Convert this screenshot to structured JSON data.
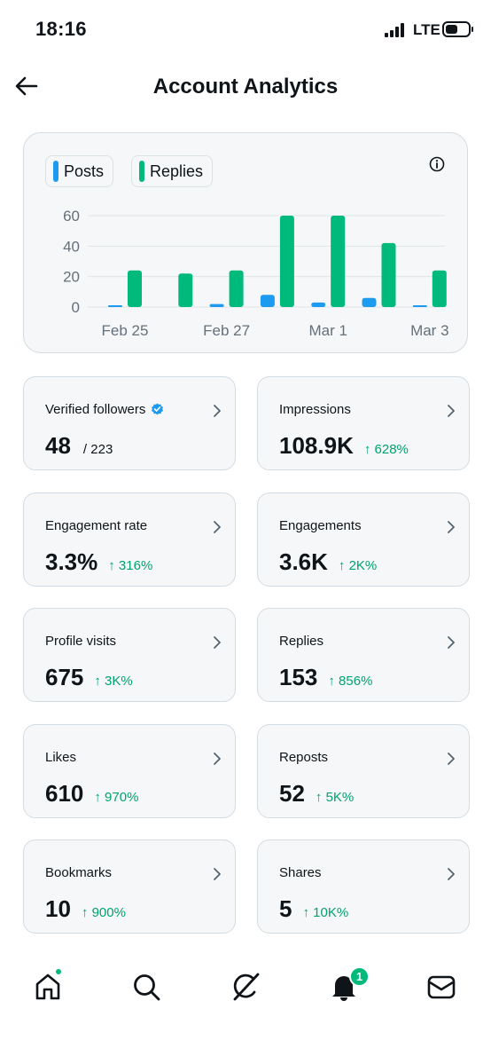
{
  "status_bar": {
    "time": "18:16",
    "network": "LTE",
    "signal_bars": 4,
    "battery_level": 0.55
  },
  "header": {
    "back_icon": "arrow-left-icon",
    "title": "Account Analytics"
  },
  "chart": {
    "legend": [
      {
        "label": "Posts",
        "color": "#1d9bf0"
      },
      {
        "label": "Replies",
        "color": "#00ba7c"
      }
    ],
    "info_icon": "info-icon"
  },
  "chart_data": {
    "type": "bar",
    "categories": [
      "Feb 25",
      "Feb 26",
      "Feb 27",
      "Feb 28",
      "Mar 1",
      "Mar 2",
      "Mar 3"
    ],
    "x_tick_labels": [
      "Feb 25",
      "Feb 27",
      "Mar 1",
      "Mar 3"
    ],
    "y_ticks": [
      "0",
      "20",
      "40",
      "60"
    ],
    "ylim": [
      0,
      60
    ],
    "grid": "horizontal",
    "legend_position": "top-left",
    "series": [
      {
        "name": "Posts",
        "color": "#1d9bf0",
        "values": [
          1,
          0,
          2,
          8,
          3,
          6,
          1
        ]
      },
      {
        "name": "Replies",
        "color": "#00ba7c",
        "values": [
          24,
          22,
          24,
          60,
          60,
          42,
          24
        ]
      }
    ]
  },
  "metrics": [
    {
      "label": "Verified followers",
      "value": "48",
      "sub": "/ 223",
      "change": "",
      "verified": true
    },
    {
      "label": "Impressions",
      "value": "108.9K",
      "sub": "",
      "change": "↑ 628%"
    },
    {
      "label": "Engagement rate",
      "value": "3.3%",
      "sub": "",
      "change": "↑ 316%"
    },
    {
      "label": "Engagements",
      "value": "3.6K",
      "sub": "",
      "change": "↑ 2K%"
    },
    {
      "label": "Profile visits",
      "value": "675",
      "sub": "",
      "change": "↑ 3K%"
    },
    {
      "label": "Replies",
      "value": "153",
      "sub": "",
      "change": "↑ 856%"
    },
    {
      "label": "Likes",
      "value": "610",
      "sub": "",
      "change": "↑ 970%"
    },
    {
      "label": "Reposts",
      "value": "52",
      "sub": "",
      "change": "↑ 5K%"
    },
    {
      "label": "Bookmarks",
      "value": "10",
      "sub": "",
      "change": "↑ 900%"
    },
    {
      "label": "Shares",
      "value": "5",
      "sub": "",
      "change": "↑ 10K%"
    }
  ],
  "bottom_nav": {
    "items": [
      "home-icon",
      "search-icon",
      "grok-icon",
      "bell-icon",
      "mail-icon"
    ],
    "notification_count": "1",
    "accent_color": "#00ba7c"
  }
}
